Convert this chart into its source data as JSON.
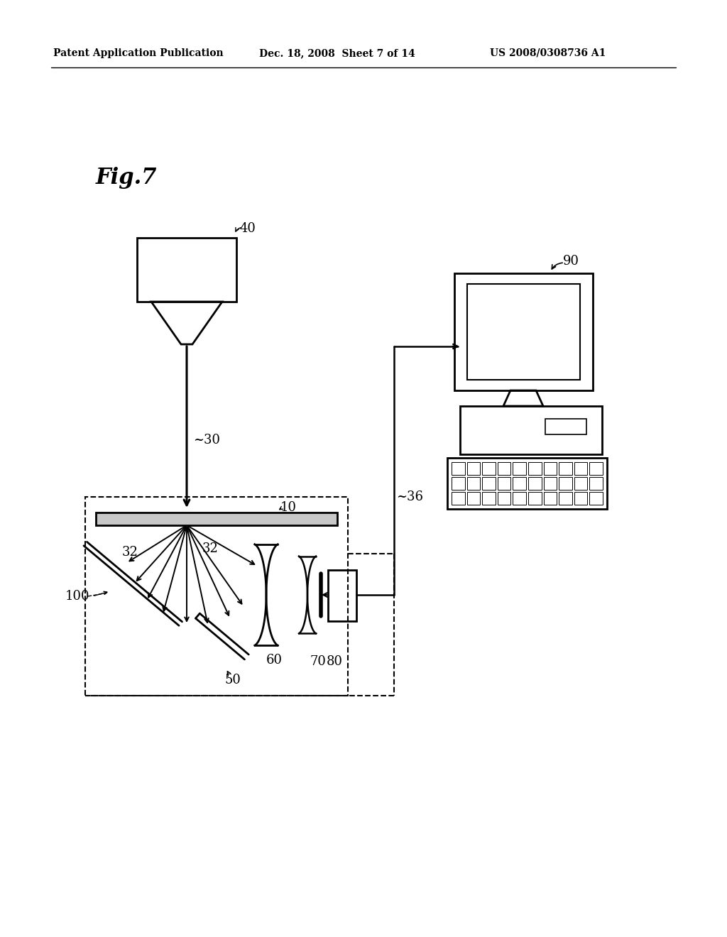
{
  "bg": "#ffffff",
  "header_left": "Patent Application Publication",
  "header_mid": "Dec. 18, 2008  Sheet 7 of 14",
  "header_right": "US 2008/0308736 A1",
  "fig_label": "Fig.7",
  "lw_main": 1.8,
  "lw_thin": 1.2,
  "fs_label": 13,
  "fs_header": 10,
  "fs_fig": 22
}
